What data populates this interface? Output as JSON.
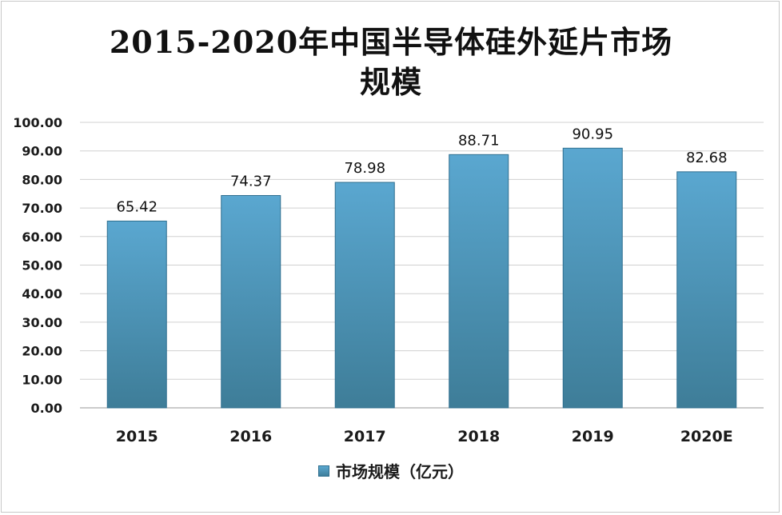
{
  "chart_data": {
    "type": "bar",
    "title_line1": "2015-2020年中国半导体硅外延片市场",
    "title_line2": "规模",
    "categories": [
      "2015",
      "2016",
      "2017",
      "2018",
      "2019",
      "2020E"
    ],
    "series": [
      {
        "name": "市场规模（亿元）",
        "values": [
          65.42,
          74.37,
          78.98,
          88.71,
          90.95,
          82.68
        ]
      }
    ],
    "data_labels": [
      "65.42",
      "74.37",
      "78.98",
      "88.71",
      "90.95",
      "82.68"
    ],
    "ylim": [
      0,
      100
    ],
    "yticks": [
      "0.00",
      "10.00",
      "20.00",
      "30.00",
      "40.00",
      "50.00",
      "60.00",
      "70.00",
      "80.00",
      "90.00",
      "100.00"
    ],
    "xlabel": "",
    "ylabel": "",
    "grid": true,
    "legend_position": "bottom",
    "bar_color_top": "#5aa7d0",
    "bar_color_bottom": "#3e7d98"
  }
}
